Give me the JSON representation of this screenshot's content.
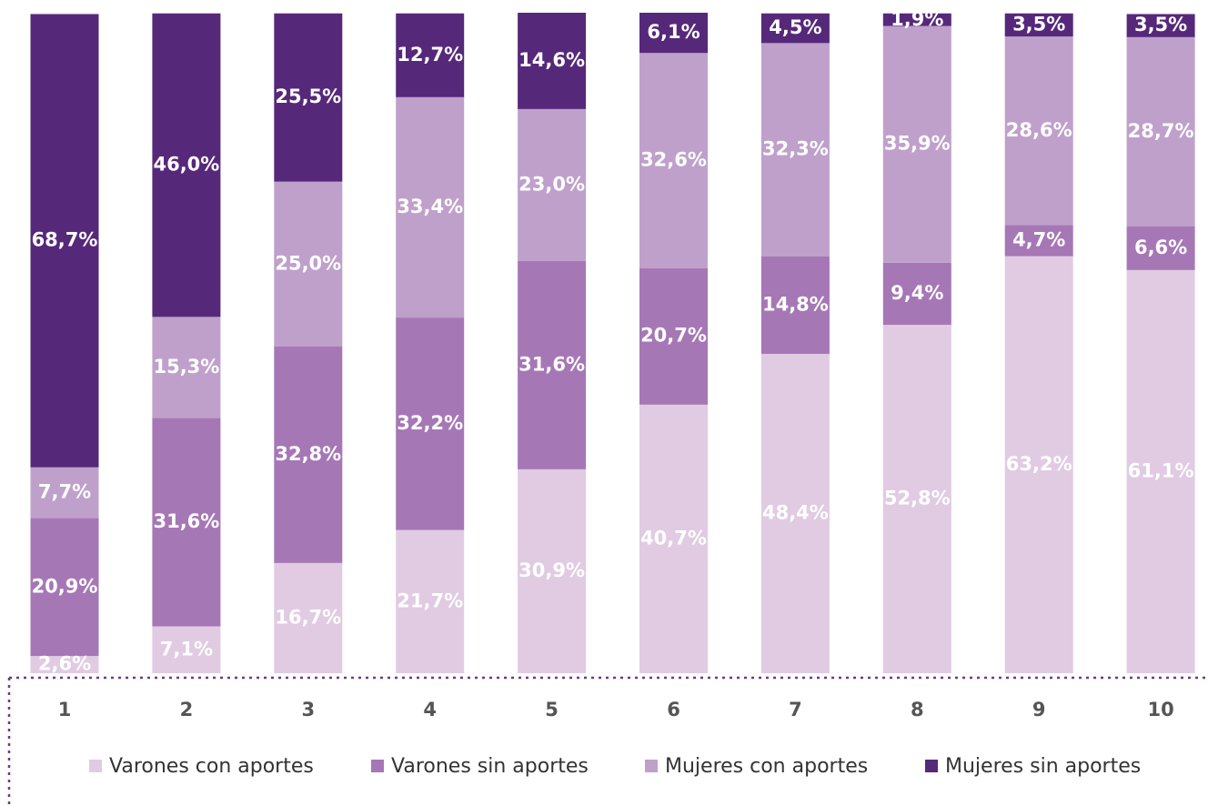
{
  "chart_data": {
    "type": "stacked_bar",
    "categories": [
      "1",
      "2",
      "3",
      "4",
      "5",
      "6",
      "7",
      "8",
      "9",
      "10"
    ],
    "series": [
      {
        "name": "Varones con aportes",
        "color": "#e0cbe3",
        "values": [
          2.6,
          7.1,
          16.7,
          21.7,
          30.9,
          40.7,
          48.4,
          52.8,
          63.2,
          61.1
        ],
        "value_labels": [
          "2,6%",
          "7,1%",
          "16,7%",
          "21,7%",
          "30,9%",
          "40,7%",
          "48,4%",
          "52,8%",
          "63,2%",
          "61,1%"
        ]
      },
      {
        "name": "Varones sin aportes",
        "color": "#a677b5",
        "values": [
          20.9,
          31.6,
          32.8,
          32.2,
          31.6,
          20.7,
          14.8,
          9.4,
          4.7,
          6.6
        ],
        "value_labels": [
          "20,9%",
          "31,6%",
          "32,8%",
          "32,2%",
          "31,6%",
          "20,7%",
          "14,8%",
          "9,4%",
          "4,7%",
          "6,6%"
        ]
      },
      {
        "name": "Mujeres con aportes",
        "color": "#bfa0cb",
        "values": [
          7.7,
          15.3,
          25.0,
          33.4,
          23.0,
          32.6,
          32.3,
          35.9,
          28.6,
          28.7
        ],
        "value_labels": [
          "7,7%",
          "15,3%",
          "25,0%",
          "33,4%",
          "23,0%",
          "32,6%",
          "32,3%",
          "35,9%",
          "28,6%",
          "28,7%"
        ]
      },
      {
        "name": "Mujeres sin aportes",
        "color": "#56287a",
        "values": [
          68.7,
          46.0,
          25.5,
          12.7,
          14.6,
          6.1,
          4.5,
          1.9,
          3.5,
          3.5
        ],
        "value_labels": [
          "68,7%",
          "46,0%",
          "25,5%",
          "12,7%",
          "14,6%",
          "6,1%",
          "4,5%",
          "1,9%",
          "3,5%",
          "3,5%"
        ]
      }
    ]
  }
}
